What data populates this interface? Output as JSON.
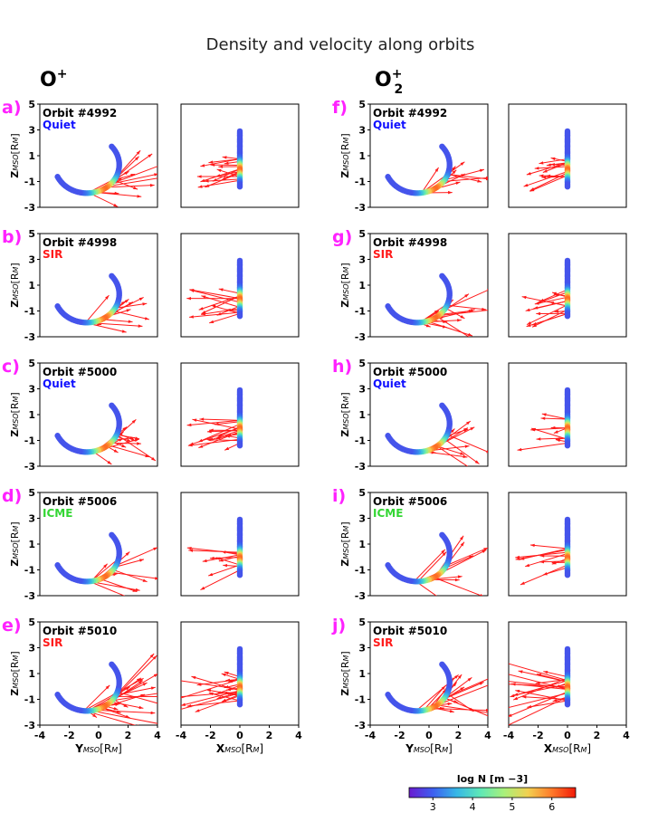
{
  "chart_data": {
    "type": "scatter",
    "title": "Density and velocity along orbits",
    "species": [
      {
        "name": "O",
        "superscript": "+",
        "subscript": ""
      },
      {
        "name": "O",
        "superscript": "+",
        "subscript": "2"
      }
    ],
    "rows": [
      {
        "orbit": "Orbit #4992",
        "condition": "Quiet",
        "condition_color": "#1010ff"
      },
      {
        "orbit": "Orbit #4998",
        "condition": "SIR",
        "condition_color": "#ff1a1a"
      },
      {
        "orbit": "Orbit #5000",
        "condition": "Quiet",
        "condition_color": "#1010ff"
      },
      {
        "orbit": "Orbit #5006",
        "condition": "ICME",
        "condition_color": "#33d633"
      },
      {
        "orbit": "Orbit #5010",
        "condition": "SIR",
        "condition_color": "#ff1a1a"
      }
    ],
    "panel_letters": {
      "left": [
        "a)",
        "b)",
        "c)",
        "d)",
        "e)"
      ],
      "right": [
        "f)",
        "g)",
        "h)",
        "i)",
        "j)"
      ]
    },
    "letter_color": "#ff22ff",
    "xlabel_y": "Y",
    "xlabel_y_sub": "MSO",
    "xlabel_y_unit": "[R",
    "xlabel_y_unit_sub": "M",
    "xlabel_y_close": "]",
    "xlabel_x": "X",
    "xlabel_x_sub": "MSO",
    "ylabel": "Z",
    "ylabel_sub": "MSO",
    "xticks": [
      "-4",
      "-2",
      "0",
      "2",
      "4"
    ],
    "yticks": [
      "5",
      "3",
      "1",
      "-1",
      "-3"
    ],
    "xlim": [
      -4,
      4
    ],
    "ylim": [
      -3,
      5
    ],
    "orbit_shape": {
      "center": [
        -0.8,
        0.3
      ],
      "radius": 2.2,
      "theta_start_deg": -155,
      "theta_end_deg": 40
    },
    "colorbar": {
      "label": "log N [m",
      "label_exp": "−3",
      "label_close": "]",
      "range": [
        2.4,
        6.6
      ],
      "ticks": [
        "3",
        "4",
        "5",
        "6"
      ],
      "colors": [
        "#6a1bd0",
        "#3d5ff0",
        "#36b7e6",
        "#5fe8b6",
        "#a9f07a",
        "#f2d050",
        "#ff7a2a",
        "#f21a08"
      ]
    },
    "vector_color": "#ff1a1a"
  }
}
